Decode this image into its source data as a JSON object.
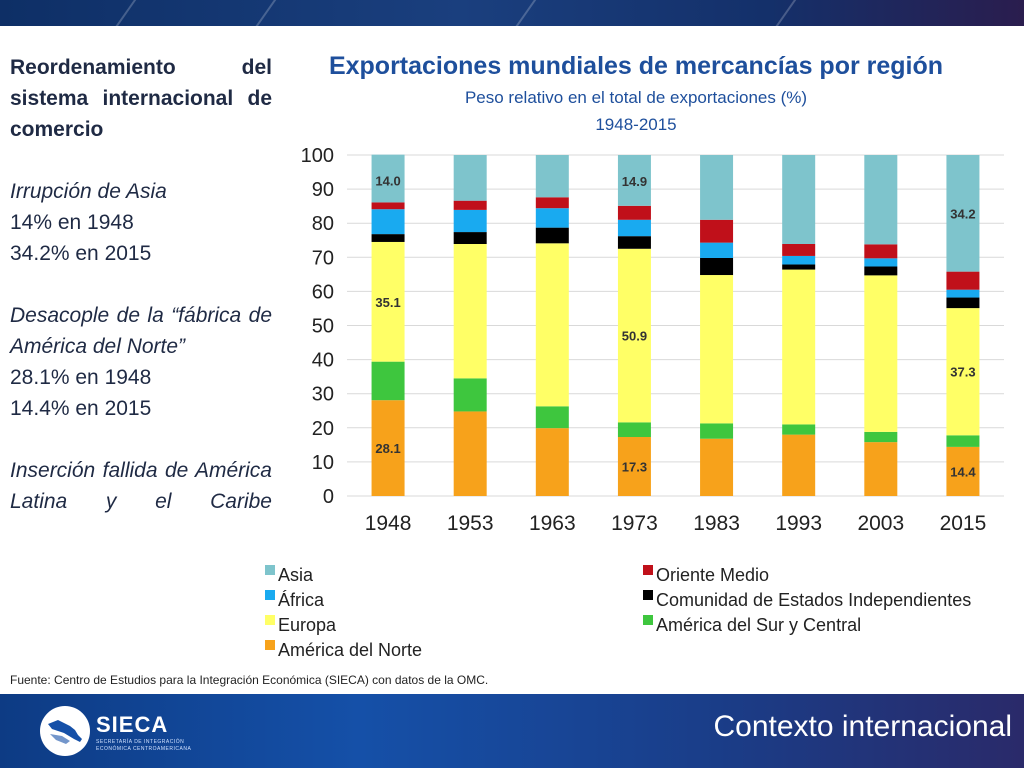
{
  "left_panel": {
    "heading": "Reordenamiento del sistema internacional de comercio",
    "asia_title": "Irrupción de Asia",
    "asia_line1": "14% en 1948",
    "asia_line2": "34.2% en 2015",
    "na_title": "Desacople de la “fábrica de América del Norte”",
    "na_line1": "28.1% en 1948",
    "na_line2": "14.4% en 2015",
    "la_title": "Inserción fallida de América Latina y el Caribe"
  },
  "source": "Fuente: Centro de Estudios para la Integración Económica (SIECA) con datos de la OMC.",
  "footer": {
    "title": "Contexto internacional",
    "logo_name": "SIECA",
    "logo_tag1": "SECRETARÍA DE INTEGRACIÓN",
    "logo_tag2": "ECONÓMICA CENTROAMERICANA",
    "logo_icon": "sieca-logo-icon"
  },
  "chart_data": {
    "type": "bar",
    "stacked": true,
    "title": "Exportaciones mundiales de mercancías por región",
    "subtitle": "Peso relativo en el total de exportaciones (%)",
    "years_label": "1948-2015",
    "categories": [
      "1948",
      "1953",
      "1963",
      "1973",
      "1983",
      "1993",
      "2003",
      "2015"
    ],
    "ylim": [
      0,
      100
    ],
    "yticks": [
      0,
      10,
      20,
      30,
      40,
      50,
      60,
      70,
      80,
      90,
      100
    ],
    "grid": true,
    "legend_position": "bottom",
    "series": [
      {
        "name": "América del Norte",
        "color": "#f7a21b",
        "values": [
          28.1,
          24.8,
          19.9,
          17.3,
          16.8,
          18.0,
          15.8,
          14.4
        ]
      },
      {
        "name": "América del Sur y Central",
        "color": "#3ec63e",
        "values": [
          11.3,
          9.7,
          6.4,
          4.3,
          4.5,
          3.0,
          3.0,
          3.4
        ]
      },
      {
        "name": "Europa",
        "color": "#ffff66",
        "values": [
          35.1,
          39.4,
          47.8,
          50.9,
          43.5,
          45.4,
          45.9,
          37.3
        ]
      },
      {
        "name": "Comunidad de Estados Independientes",
        "color": "#000000",
        "values": [
          2.3,
          3.5,
          4.6,
          3.7,
          5.0,
          1.5,
          2.6,
          3.1
        ]
      },
      {
        "name": "África",
        "color": "#19aaf0",
        "values": [
          7.3,
          6.5,
          5.7,
          4.8,
          4.5,
          2.5,
          2.4,
          2.3
        ]
      },
      {
        "name": "Oriente Medio",
        "color": "#c0101a",
        "values": [
          2.0,
          2.7,
          3.2,
          4.1,
          6.7,
          3.5,
          4.1,
          5.3
        ]
      },
      {
        "name": "Asia",
        "color": "#7ec4cc",
        "values": [
          14.0,
          13.4,
          12.4,
          14.9,
          19.0,
          26.1,
          26.2,
          34.2
        ]
      }
    ],
    "data_labels": [
      {
        "series": "Asia",
        "category": "1948",
        "text": "14.0"
      },
      {
        "series": "Asia",
        "category": "1973",
        "text": "14.9"
      },
      {
        "series": "Asia",
        "category": "2015",
        "text": "34.2"
      },
      {
        "series": "Europa",
        "category": "1948",
        "text": "35.1"
      },
      {
        "series": "Europa",
        "category": "1973",
        "text": "50.9"
      },
      {
        "series": "Europa",
        "category": "2015",
        "text": "37.3"
      },
      {
        "series": "América del Norte",
        "category": "1948",
        "text": "28.1"
      },
      {
        "series": "América del Norte",
        "category": "1973",
        "text": "17.3"
      },
      {
        "series": "América del Norte",
        "category": "2015",
        "text": "14.4"
      }
    ],
    "legend": [
      {
        "name": "Asia",
        "color": "#7ec4cc"
      },
      {
        "name": "Oriente Medio",
        "color": "#c0101a"
      },
      {
        "name": "África",
        "color": "#19aaf0"
      },
      {
        "name": "Comunidad de Estados Independientes",
        "color": "#000000"
      },
      {
        "name": "Europa",
        "color": "#ffff66"
      },
      {
        "name": "América del Sur y Central",
        "color": "#3ec63e"
      },
      {
        "name": "América del Norte",
        "color": "#f7a21b"
      }
    ]
  }
}
